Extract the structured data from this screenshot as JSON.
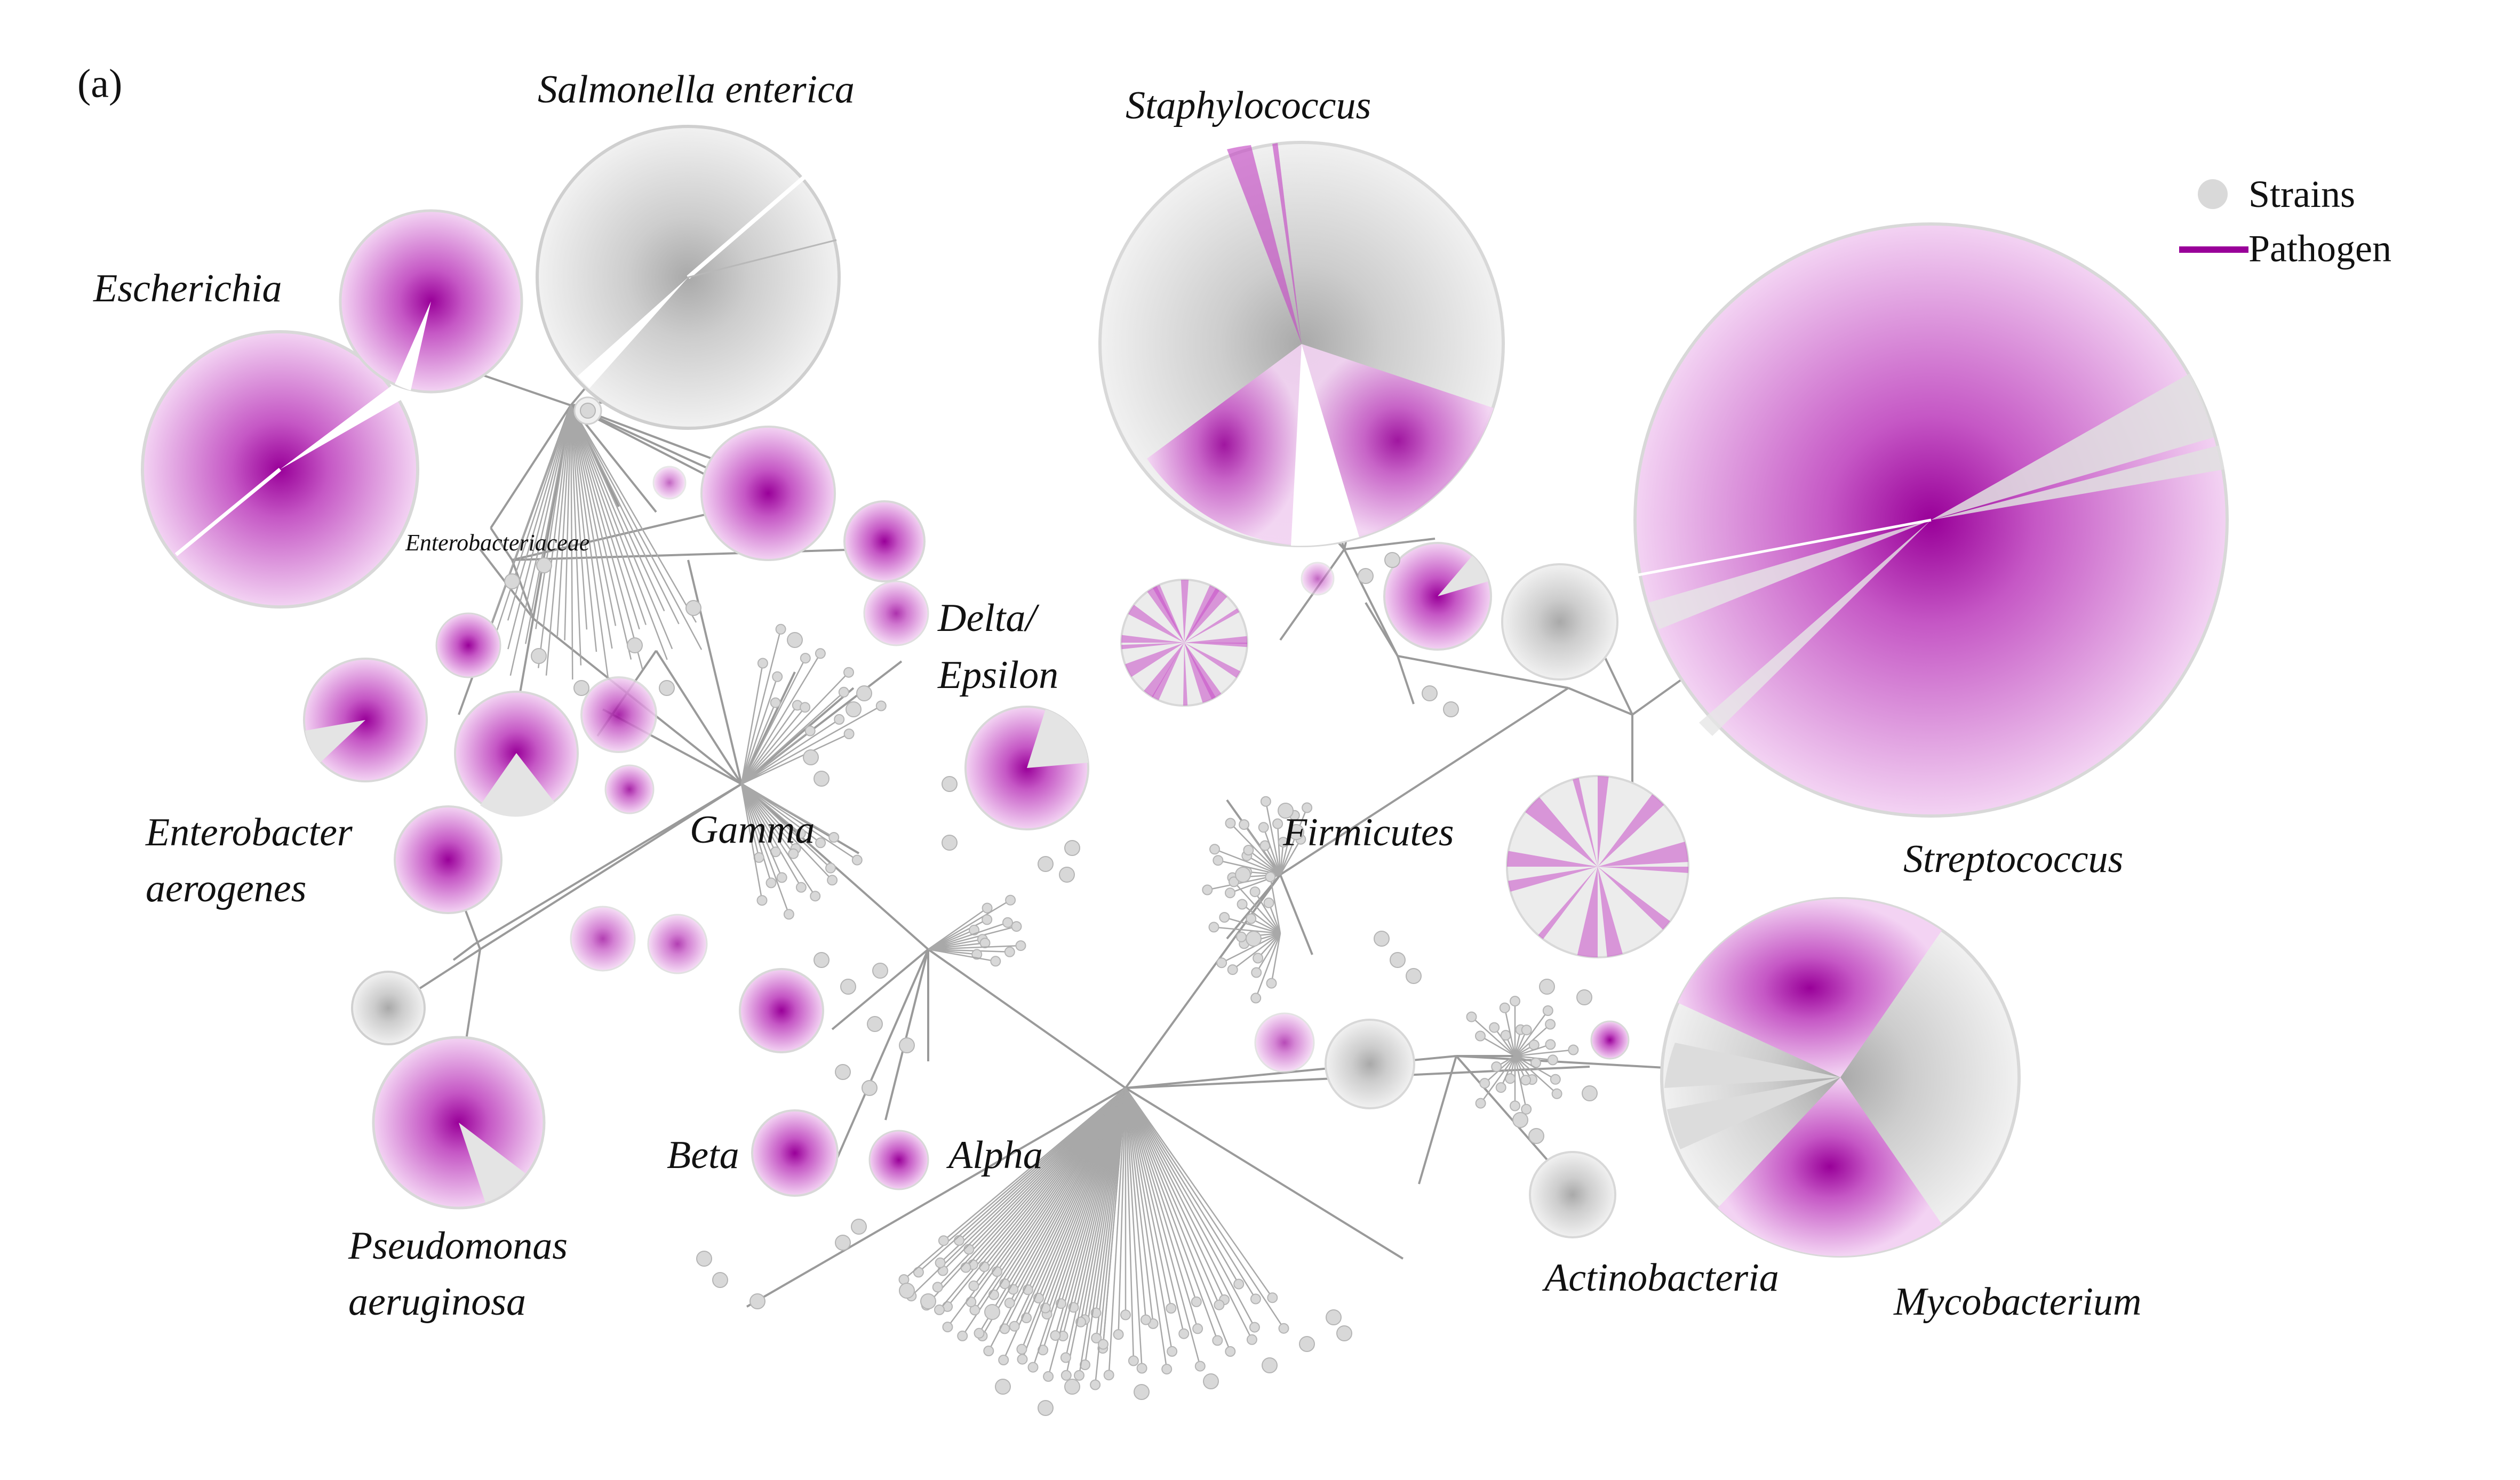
{
  "panel_label": "(a)",
  "legend": {
    "strains_label": "Strains",
    "pathogen_label": "Pathogen",
    "strains_color": "#d9d9d9",
    "pathogen_color": "#990099"
  },
  "colors": {
    "pathogen_center": "#990099",
    "pathogen_edge": "#f2d2f2",
    "strain_center": "#b0b0b0",
    "strain_edge": "#f0f0f0",
    "branch": "#9a9a9a"
  },
  "labels": {
    "salmonella": "Salmonella enterica",
    "staphylococcus": "Staphylococcus",
    "escherichia": "Escherichia",
    "enterobacteriaceae": "Enterobacteriaceae",
    "delta_line1": "Delta/",
    "delta_line2": "Epsilon",
    "gamma": "Gamma",
    "firmicutes": "Firmicutes",
    "streptococcus": "Streptococcus",
    "enterobacter_line1": "Enterobacter",
    "enterobacter_line2": "aerogenes",
    "beta": "Beta",
    "alpha": "Alpha",
    "pseudomonas_line1": "Pseudomonas",
    "pseudomonas_line2": "aeruginosa",
    "actinobacteria": "Actinobacteria",
    "mycobacterium": "Mycobacterium"
  }
}
